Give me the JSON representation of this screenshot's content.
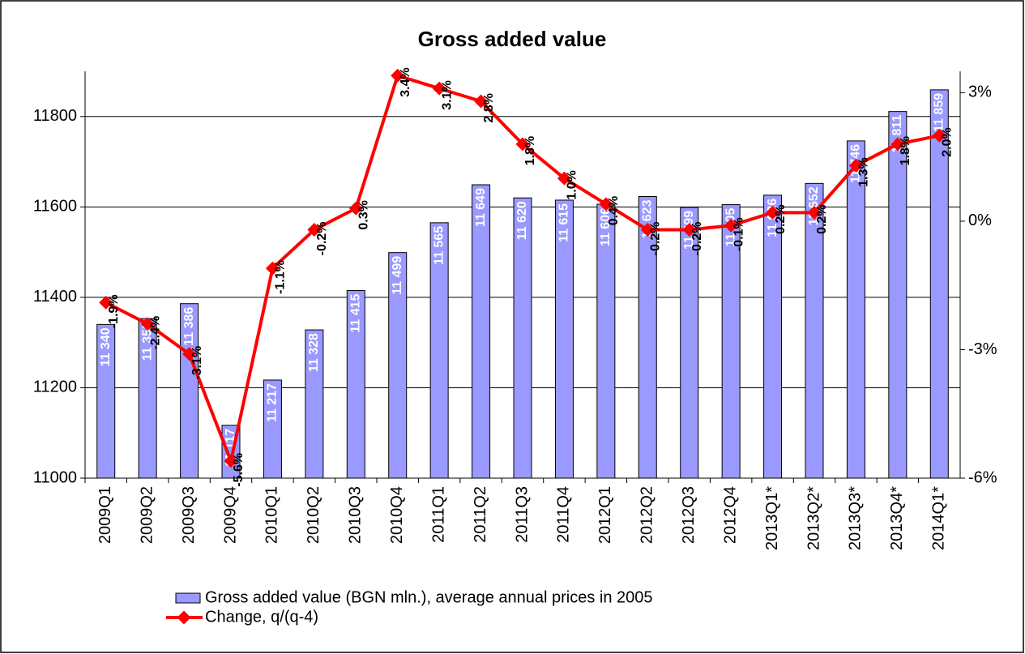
{
  "chart_data": {
    "type": "bar",
    "title": "Gross added value",
    "categories": [
      "2009Q1",
      "2009Q2",
      "2009Q3",
      "2009Q4",
      "2010Q1",
      "2010Q2",
      "2010Q3",
      "2010Q4",
      "2011Q1",
      "2011Q2",
      "2011Q3",
      "2011Q4",
      "2012Q1",
      "2012Q2",
      "2012Q3",
      "2012Q4",
      "2013Q1*",
      "2013Q2*",
      "2013Q3*",
      "2013Q4*",
      "2014Q1*"
    ],
    "series": [
      {
        "name": "Gross added value (BGN mln.), average annual prices in 2005",
        "type": "bar",
        "color": "#9999ff",
        "values": [
          11340,
          11353,
          11386,
          11117,
          11217,
          11328,
          11415,
          11499,
          11565,
          11649,
          11620,
          11615,
          11606,
          11623,
          11599,
          11605,
          11626,
          11652,
          11746,
          11811,
          11859
        ],
        "value_labels": [
          "11 340",
          "11 353",
          "11 386",
          "11 117",
          "11 217",
          "11 328",
          "11 415",
          "11 499",
          "11 565",
          "11 649",
          "11 620",
          "11 615",
          "11 606",
          "11 623",
          "11 599",
          "11 605",
          "11 626",
          "11 652",
          "11 746",
          "11 811",
          "11 859"
        ]
      },
      {
        "name": "Change, q/(q-4)",
        "type": "line",
        "axis": "y2",
        "color": "#ff0000",
        "values": [
          -1.9,
          -2.4,
          -3.1,
          -5.6,
          -1.1,
          -0.2,
          0.3,
          3.4,
          3.1,
          2.8,
          1.8,
          1.0,
          0.4,
          -0.2,
          -0.2,
          -0.1,
          0.2,
          0.2,
          1.3,
          1.8,
          2.0
        ],
        "value_labels": [
          "-1.9%",
          "-2.4%",
          "-3.1%",
          "-5.6%",
          "-1.1%",
          "-0.2%",
          "0.3%",
          "3.4%",
          "3.1%",
          "2.8%",
          "1.8%",
          "1.0%",
          "0.4%",
          "-0.2%",
          "-0.2%",
          "-0.1%",
          "0.2%",
          "0.2%",
          "1.3%",
          "1.8%",
          "2.0%"
        ]
      }
    ],
    "ylim": [
      11000,
      11900
    ],
    "yticks": [
      11000,
      11200,
      11400,
      11600,
      11800
    ],
    "y2lim": [
      -6,
      3.5
    ],
    "y2ticks": [
      {
        "value": -6,
        "label": "-6%"
      },
      {
        "value": -3,
        "label": "-3%"
      },
      {
        "value": 0,
        "label": "0%"
      },
      {
        "value": 3,
        "label": "3%"
      }
    ],
    "grid": true
  }
}
